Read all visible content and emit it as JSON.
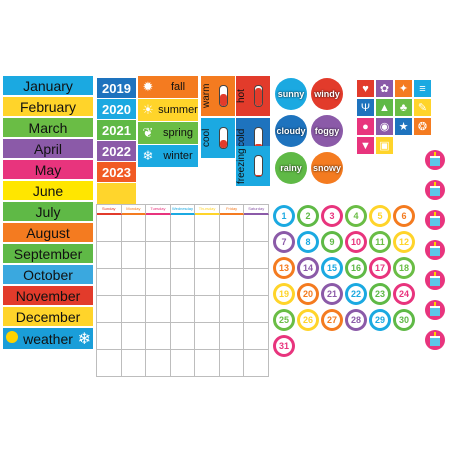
{
  "months": [
    {
      "label": "January",
      "color": "#1ba9e1"
    },
    {
      "label": "February",
      "color": "#ffd42a"
    },
    {
      "label": "March",
      "color": "#6abd45"
    },
    {
      "label": "April",
      "color": "#8b5aa8"
    },
    {
      "label": "May",
      "color": "#e8347d"
    },
    {
      "label": "June",
      "color": "#ffe600"
    },
    {
      "label": "July",
      "color": "#5fb946"
    },
    {
      "label": "August",
      "color": "#f47b20"
    },
    {
      "label": "September",
      "color": "#5fb946"
    },
    {
      "label": "October",
      "color": "#3aa8df"
    },
    {
      "label": "November",
      "color": "#e23b2b"
    },
    {
      "label": "December",
      "color": "#ffd42a"
    }
  ],
  "weather_strip": {
    "label": "weather",
    "color": "#1a9ed9"
  },
  "years": [
    {
      "label": "2019",
      "color": "#1e73be"
    },
    {
      "label": "2020",
      "color": "#1ba9e1"
    },
    {
      "label": "2021",
      "color": "#5fb946"
    },
    {
      "label": "2022",
      "color": "#8b5aa8"
    },
    {
      "label": "2023",
      "color": "#f15a24"
    }
  ],
  "seasons": [
    {
      "label": "fall",
      "color": "#f47b20",
      "icon": "leaf-icon",
      "glyph": "✹"
    },
    {
      "label": "summer",
      "color": "#ffd42a",
      "icon": "sun-icon",
      "glyph": "☀"
    },
    {
      "label": "spring",
      "color": "#6abd45",
      "icon": "sprout-icon",
      "glyph": "❦"
    },
    {
      "label": "winter",
      "color": "#1ba9e1",
      "icon": "snowflake-icon",
      "glyph": "❄"
    }
  ],
  "temperatures": [
    {
      "label": "warm",
      "color": "#f47b20",
      "level": 0.6
    },
    {
      "label": "hot",
      "color": "#e23b2b",
      "level": 0.9
    },
    {
      "label": "cool",
      "color": "#1ba9e1",
      "level": 0.4
    },
    {
      "label": "cold",
      "color": "#1e73be",
      "level": 0.2
    },
    {
      "label": "freezing",
      "color": "#1ba9e1",
      "level": 0.05
    }
  ],
  "weather": [
    {
      "label": "sunny",
      "color": "#1ba9e1"
    },
    {
      "label": "windy",
      "color": "#e23b2b"
    },
    {
      "label": "cloudy",
      "color": "#1e73be"
    },
    {
      "label": "foggy",
      "color": "#8b5aa8"
    },
    {
      "label": "rainy",
      "color": "#5fb946"
    },
    {
      "label": "snowy",
      "color": "#f47b20"
    }
  ],
  "holidays": [
    {
      "icon": "heart-icon",
      "glyph": "♥",
      "color": "#e23b2b"
    },
    {
      "icon": "bunny-icon",
      "glyph": "✿",
      "color": "#8b5aa8"
    },
    {
      "icon": "witch-icon",
      "glyph": "✦",
      "color": "#f47b20"
    },
    {
      "icon": "flag-icon",
      "glyph": "≡",
      "color": "#1ba9e1"
    },
    {
      "icon": "menorah-icon",
      "glyph": "Ψ",
      "color": "#1e73be"
    },
    {
      "icon": "tree-icon",
      "glyph": "▲",
      "color": "#5fb946"
    },
    {
      "icon": "shamrock-icon",
      "glyph": "♣",
      "color": "#6abd45"
    },
    {
      "icon": "dream-icon",
      "glyph": "✎",
      "color": "#ffd42a"
    },
    {
      "icon": "egg-icon",
      "glyph": "●",
      "color": "#e8347d"
    },
    {
      "icon": "pumpkin-icon",
      "glyph": "◉",
      "color": "#8b5aa8"
    },
    {
      "icon": "us-flag-icon",
      "glyph": "★",
      "color": "#1e73be"
    },
    {
      "icon": "turkey-icon",
      "glyph": "❂",
      "color": "#f47b20"
    },
    {
      "icon": "pilgrim-icon",
      "glyph": "▼",
      "color": "#e8347d"
    },
    {
      "icon": "present-icon",
      "glyph": "▣",
      "color": "#ffd42a"
    }
  ],
  "weekdays": [
    "Sunday",
    "Monday",
    "Tuesday",
    "Wednesday",
    "Thursday",
    "Friday",
    "Saturday"
  ],
  "weekday_colors": [
    "#e23b2b",
    "#f47b20",
    "#e8347d",
    "#1ba9e1",
    "#ffd42a",
    "#f47b20",
    "#8b5aa8"
  ],
  "numbers": [
    "1",
    "2",
    "3",
    "4",
    "5",
    "6",
    "7",
    "8",
    "9",
    "10",
    "11",
    "12",
    "13",
    "14",
    "15",
    "16",
    "17",
    "18",
    "19",
    "20",
    "21",
    "22",
    "23",
    "24",
    "25",
    "26",
    "27",
    "28",
    "29",
    "30",
    "31"
  ],
  "number_colors": [
    "#1ba9e1",
    "#5fb946",
    "#e8347d",
    "#6abd45",
    "#ffd42a",
    "#f47b20",
    "#8b5aa8"
  ],
  "birthday_count": 7
}
